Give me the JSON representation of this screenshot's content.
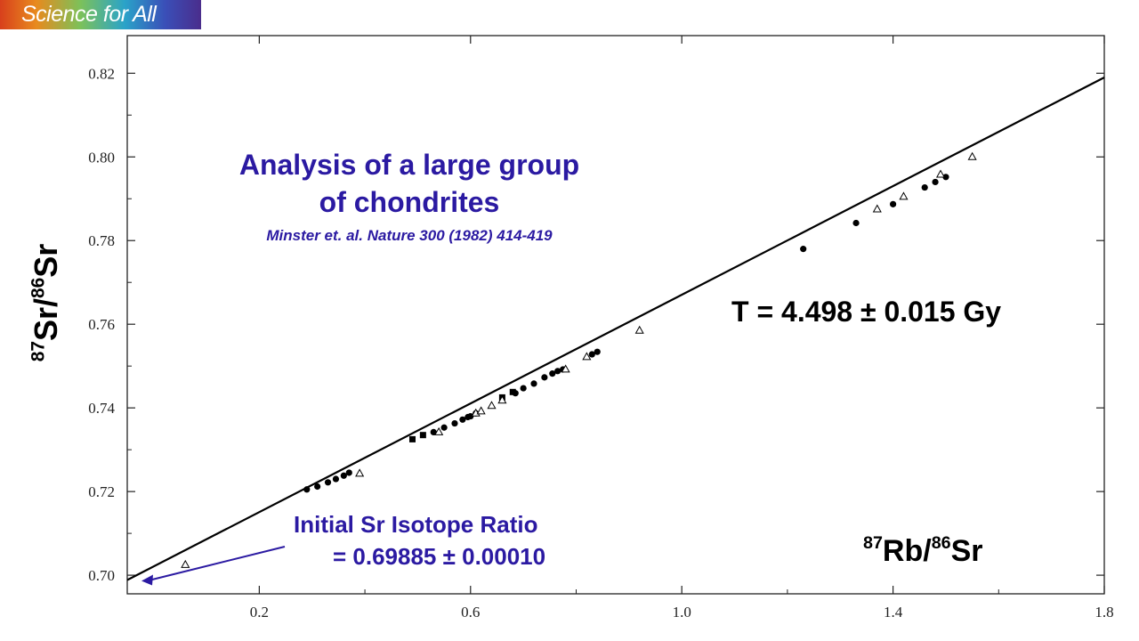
{
  "logo": {
    "text": "Science for All"
  },
  "chart_data": {
    "type": "scatter",
    "title": "Analysis of a large group of chondrites",
    "title_lines": [
      "Analysis of a large group",
      "of chondrites"
    ],
    "citation": "Minster et. al. Nature 300 (1982) 414-419",
    "xlabel_iso_a": "87",
    "xlabel_el_a": "Rb/",
    "xlabel_iso_b": "86",
    "xlabel_el_b": "Sr",
    "ylabel_iso_a": "87",
    "ylabel_el_a": "Sr/",
    "ylabel_iso_b": "86",
    "ylabel_el_b": "Sr",
    "xlim": [
      -0.05,
      1.8
    ],
    "ylim": [
      0.69555,
      0.829
    ],
    "x_ticks": [
      {
        "v": 0.2,
        "label": "0.2"
      },
      {
        "v": 0.6,
        "label": "0.6"
      },
      {
        "v": 1.0,
        "label": "1.0"
      },
      {
        "v": 1.4,
        "label": "1.4"
      },
      {
        "v": 1.8,
        "label": "1.8"
      }
    ],
    "y_ticks": [
      {
        "v": 0.7,
        "label": "0.70"
      },
      {
        "v": 0.72,
        "label": "0.72"
      },
      {
        "v": 0.74,
        "label": "0.74"
      },
      {
        "v": 0.76,
        "label": "0.76"
      },
      {
        "v": 0.78,
        "label": "0.78"
      },
      {
        "v": 0.8,
        "label": "0.80"
      },
      {
        "v": 0.82,
        "label": "0.82"
      }
    ],
    "isochron": {
      "x": [
        -0.05,
        1.8
      ],
      "y": [
        0.69885,
        0.819
      ],
      "color": "#000000"
    },
    "series": [
      {
        "marker": "circle",
        "color": "#000000",
        "x": [
          0.29,
          0.31,
          0.33,
          0.345,
          0.36,
          0.37,
          0.53,
          0.55,
          0.57,
          0.585,
          0.595,
          0.6,
          0.61,
          0.685,
          0.7,
          0.72,
          0.74,
          0.755,
          0.765,
          0.775,
          0.83,
          0.84,
          1.23,
          1.33,
          1.4,
          1.46,
          1.48,
          1.5
        ],
        "y": [
          0.7205,
          0.7212,
          0.7222,
          0.723,
          0.7238,
          0.7245,
          0.7342,
          0.7353,
          0.7363,
          0.7372,
          0.7378,
          0.738,
          0.7387,
          0.7435,
          0.7447,
          0.7458,
          0.7473,
          0.7482,
          0.7488,
          0.7492,
          0.7528,
          0.7534,
          0.778,
          0.7842,
          0.7887,
          0.7927,
          0.794,
          0.7952
        ]
      },
      {
        "marker": "square",
        "color": "#000000",
        "x": [
          0.49,
          0.51,
          0.66,
          0.68
        ],
        "y": [
          0.7325,
          0.7335,
          0.7425,
          0.7438
        ]
      },
      {
        "marker": "triangle",
        "color": "#000000",
        "x": [
          0.06,
          0.39,
          0.54,
          0.61,
          0.62,
          0.64,
          0.66,
          0.78,
          0.82,
          0.92,
          1.37,
          1.42,
          1.49,
          1.55
        ],
        "y": [
          0.7025,
          0.7243,
          0.7342,
          0.7387,
          0.7392,
          0.7405,
          0.7418,
          0.7492,
          0.7522,
          0.7585,
          0.7875,
          0.7905,
          0.7958,
          0.8
        ]
      }
    ],
    "annotations": {
      "age": "T = 4.498 ± 0.015  Gy",
      "initial_line1": "Initial Sr Isotope Ratio",
      "initial_line2": "=  0.69885 ± 0.00010",
      "arrow_color": "#2b1aa2",
      "arrow_target": {
        "x": -0.05,
        "y": 0.69885
      }
    },
    "grid": false,
    "legend": "none",
    "colors": {
      "text_blue": "#2b1aa2",
      "axis": "#222222"
    }
  }
}
